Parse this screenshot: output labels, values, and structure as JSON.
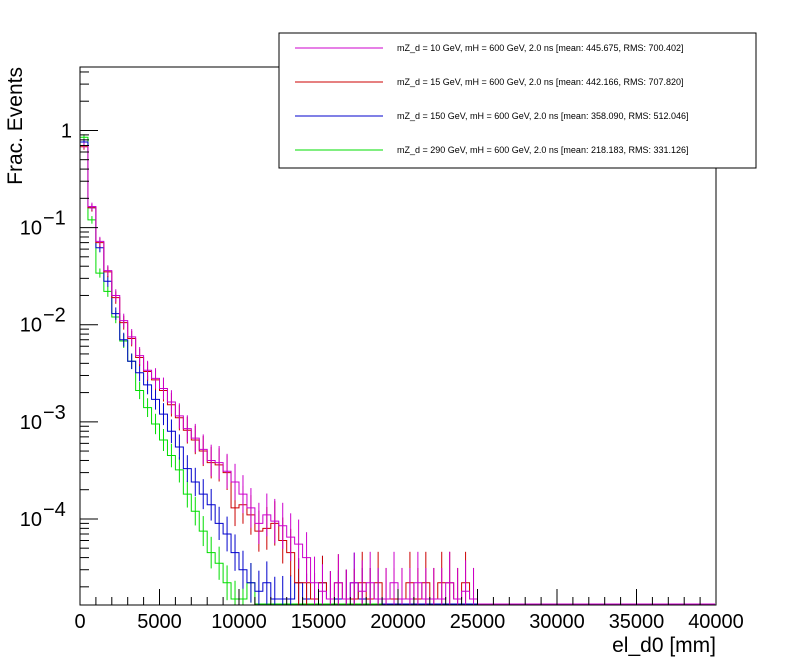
{
  "chart_data": {
    "type": "line",
    "subtype": "step-histogram",
    "title": "",
    "xlabel": "el_d0 [mm]",
    "ylabel": "Frac. Events",
    "xlim": [
      0,
      40000
    ],
    "ylim": [
      1.3e-05,
      4.5
    ],
    "yscale": "log",
    "grid": false,
    "legend_position": "top-right",
    "x_ticks": [
      0,
      5000,
      10000,
      15000,
      20000,
      25000,
      30000,
      35000,
      40000
    ],
    "x_tick_labels": [
      "0",
      "5000",
      "10000",
      "15000",
      "20000",
      "25000",
      "30000",
      "35000",
      "40000"
    ],
    "y_ticks": [
      0.0001,
      0.001,
      0.01,
      0.1,
      1
    ],
    "y_tick_labels": [
      {
        "base": "10",
        "exp": "−4"
      },
      {
        "base": "10",
        "exp": "−3"
      },
      {
        "base": "10",
        "exp": "−2"
      },
      {
        "base": "10",
        "exp": "−1"
      },
      {
        "base": "1",
        "exp": ""
      }
    ],
    "bin_width": 500,
    "series": [
      {
        "name": "mZ_d = 10 GeV, mH = 600 GeV, 2.0 ns [mean: 445.675, RMS: 700.402]",
        "color": "#cc00cc",
        "values": [
          0.7,
          0.165,
          0.072,
          0.036,
          0.02,
          0.011,
          0.0075,
          0.0048,
          0.0034,
          0.0028,
          0.0022,
          0.0016,
          0.00115,
          0.00085,
          0.00068,
          0.00052,
          0.0004,
          0.00038,
          0.00031,
          0.00024,
          0.00018,
          0.00013,
          9e-05,
          0.00011,
          9.5e-05,
          8.5e-05,
          6.5e-05,
          5.5e-05,
          4e-05,
          2.2e-05,
          1.8e-05,
          1.5e-05,
          2.2e-05,
          1.5e-05,
          2.2e-05,
          1.8e-05,
          2.2e-05,
          1.5e-05,
          1.5e-05,
          2.2e-05,
          1.5e-05,
          1.5e-05,
          2.2e-05,
          1.5e-05,
          1.5e-05,
          1.5e-05,
          2.2e-05,
          1.5e-05,
          1.8e-05,
          1.5e-05
        ]
      },
      {
        "name": "mZ_d = 15 GeV, mH = 600 GeV, 2.0 ns [mean: 442.166, RMS: 707.820]",
        "color": "#cc0000",
        "values": [
          0.68,
          0.16,
          0.07,
          0.035,
          0.019,
          0.0105,
          0.0072,
          0.0046,
          0.0033,
          0.0027,
          0.0021,
          0.0015,
          0.0011,
          0.00082,
          0.00065,
          0.0005,
          0.00038,
          0.00036,
          0.0003,
          0.00013,
          0.00014,
          0.00011,
          7.5e-05,
          8e-05,
          9e-05,
          6e-05,
          4.5e-05,
          2.2e-05,
          2.2e-05,
          1.5e-05,
          2.2e-05,
          1.5e-05,
          2.2e-05,
          1.5e-05,
          1.5e-05,
          2.2e-05,
          1.5e-05,
          2.2e-05,
          1.5e-05,
          1.5e-05,
          1.5e-05,
          2.2e-05,
          1.5e-05,
          2.2e-05,
          1.5e-05,
          2.2e-05,
          2.2e-05,
          1.5e-05,
          2.2e-05,
          1.5e-05
        ]
      },
      {
        "name": "mZ_d = 150 GeV, mH = 600 GeV, 2.0 ns [mean: 358.090, RMS: 512.046]",
        "color": "#0000cc",
        "values": [
          0.76,
          0.16,
          0.062,
          0.028,
          0.013,
          0.007,
          0.0042,
          0.0032,
          0.0024,
          0.0017,
          0.0012,
          0.0008,
          0.00055,
          0.00033,
          0.00024,
          0.00018,
          0.00014,
          9e-05,
          7e-05,
          4.5e-05,
          3e-05,
          2.2e-05,
          1.8e-05,
          2.2e-05,
          1.5e-05,
          1.5e-05,
          1.5e-05,
          2.2e-05,
          1.5e-05,
          1.5e-05,
          2.2e-05,
          1.5e-05,
          1.5e-05,
          1.5e-05,
          2.2e-05,
          1.5e-05,
          1.5e-05,
          1.5e-05
        ]
      },
      {
        "name": "mZ_d = 290 GeV, mH = 600 GeV, 2.0 ns [mean: 218.183, RMS: 331.126]",
        "color": "#00dd00",
        "values": [
          0.85,
          0.12,
          0.034,
          0.022,
          0.012,
          0.0068,
          0.0042,
          0.0021,
          0.0014,
          0.00095,
          0.00065,
          0.00045,
          0.00032,
          0.00018,
          0.00012,
          7.5e-05,
          4.5e-05,
          3.5e-05,
          2.2e-05,
          1.5e-05,
          1.5e-05,
          2.2e-05
        ]
      }
    ]
  }
}
